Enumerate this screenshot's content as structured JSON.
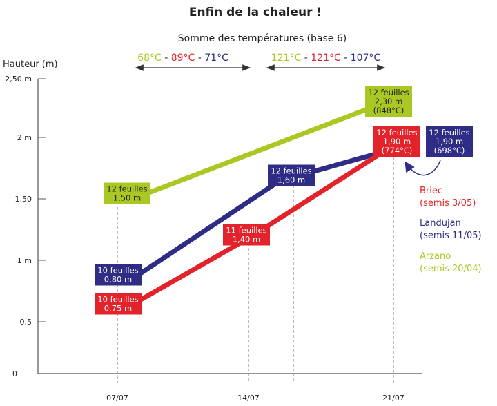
{
  "chart_data": {
    "type": "line",
    "title": "Enfin de la chaleur !",
    "subtitle": "Somme des températures (base 6)",
    "ylabel": "Hauteur (m)",
    "ylim": [
      0,
      2.5
    ],
    "y_ticks": [
      {
        "v": 2.5,
        "label": "2,50 m"
      },
      {
        "v": 2,
        "label": "2 m"
      },
      {
        "v": 1.5,
        "label": "1,50"
      },
      {
        "v": 1,
        "label": "1 m"
      },
      {
        "v": 0.5,
        "label": "0,5"
      },
      {
        "v": 0,
        "label": "0"
      }
    ],
    "x_ticks": [
      "07/07",
      "14/07",
      "21/07"
    ],
    "colors": {
      "Arzano": "#a9c823",
      "Briec": "#e3232b",
      "Landujan": "#2e2c85"
    },
    "temperature_periods": [
      {
        "from": "07/07",
        "to": "14/07",
        "values": [
          {
            "series": "Arzano",
            "text": "68°C"
          },
          {
            "series": "Briec",
            "text": "89°C"
          },
          {
            "series": "Landujan",
            "text": "71°C"
          }
        ]
      },
      {
        "from": "14/07",
        "to": "21/07",
        "values": [
          {
            "series": "Arzano",
            "text": "121°C"
          },
          {
            "series": "Briec",
            "text": "121°C"
          },
          {
            "series": "Landujan",
            "text": "107°C"
          }
        ]
      }
    ],
    "series": [
      {
        "name": "Arzano",
        "legend": [
          "Arzano",
          "(semis 20/04)"
        ],
        "points": [
          {
            "x": "07/07",
            "y": 1.5,
            "label": [
              "12 feuilles",
              "1,50 m"
            ]
          },
          {
            "x": "21/07",
            "y": 2.3,
            "label": [
              "12 feuilles",
              "2,30 m",
              "(848°C)"
            ]
          }
        ]
      },
      {
        "name": "Landujan",
        "legend": [
          "Landujan",
          "(semis 11/05)"
        ],
        "points": [
          {
            "x": "07/07",
            "y": 0.8,
            "label": [
              "10 feuilles",
              "0,80 m"
            ]
          },
          {
            "x": "16/07",
            "y": 1.6,
            "label": [
              "12 feuilles",
              "1,60 m"
            ]
          },
          {
            "x": "21/07",
            "y": 1.9,
            "label": [
              "12 feuilles",
              "1,90 m",
              "(698°C)"
            ]
          }
        ]
      },
      {
        "name": "Briec",
        "legend": [
          "Briec",
          "(semis 3/05)"
        ],
        "points": [
          {
            "x": "07/07",
            "y": 0.75,
            "label": [
              "10 feuilles",
              "0,75 m"
            ]
          },
          {
            "x": "14/07",
            "y": 1.4,
            "label": [
              "11 feuilles",
              "1,40 m"
            ]
          },
          {
            "x": "21/07",
            "y": 1.9,
            "label": [
              "12 feuilles",
              "1,90 m",
              "(774°C)"
            ]
          }
        ]
      }
    ]
  }
}
